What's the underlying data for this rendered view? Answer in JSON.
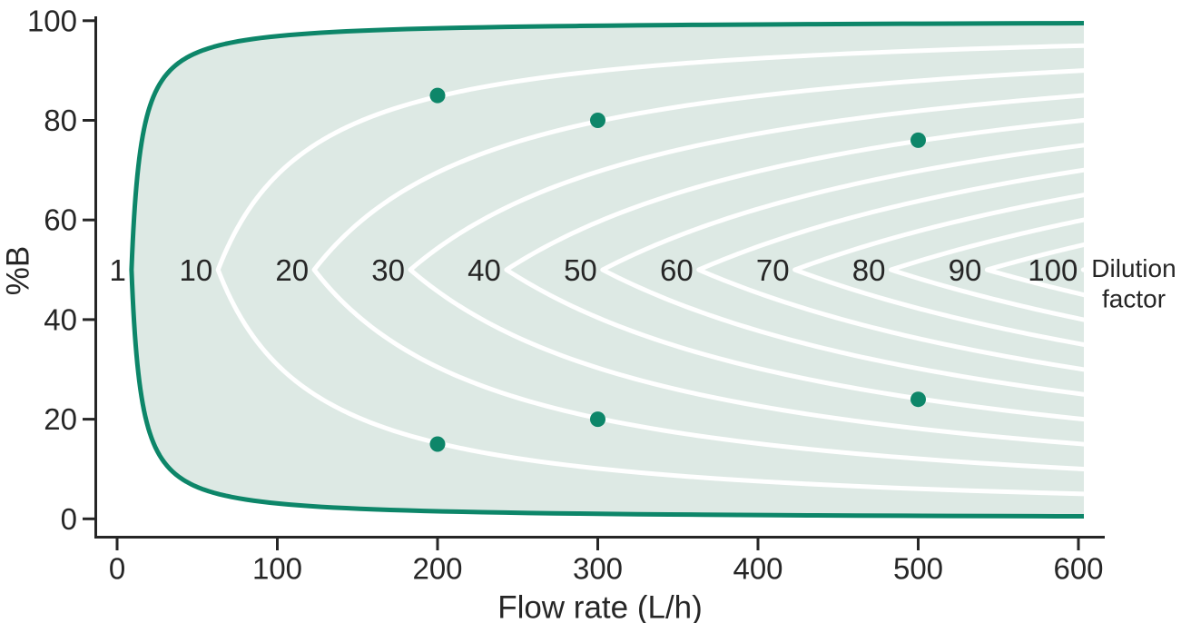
{
  "chart_data": {
    "type": "contour",
    "title": "",
    "xlabel": "Flow rate (L/h)",
    "ylabel": "%B",
    "x_ticks": [
      0,
      100,
      200,
      300,
      400,
      500,
      600
    ],
    "y_ticks": [
      0,
      20,
      40,
      60,
      80,
      100
    ],
    "xlim": [
      0,
      600
    ],
    "ylim": [
      0,
      100
    ],
    "grid": false,
    "contour_levels": [
      1,
      10,
      20,
      30,
      40,
      50,
      60,
      70,
      80,
      90,
      100
    ],
    "contour_legend_lines": [
      "Dilution",
      "factor"
    ],
    "shaded_region": "operating window between the dilution-factor-1 boundary curve and flow = 600 L/h, symmetric about %B = 50",
    "boundary_level": 1,
    "operating_points": [
      {
        "flow": 200,
        "percent_b": 85,
        "dilution_factor": 10
      },
      {
        "flow": 300,
        "percent_b": 80,
        "dilution_factor": 20
      },
      {
        "flow": 500,
        "percent_b": 76,
        "dilution_factor": 40
      },
      {
        "flow": 200,
        "percent_b": 15,
        "dilution_factor": 10
      },
      {
        "flow": 300,
        "percent_b": 20,
        "dilution_factor": 20
      },
      {
        "flow": 500,
        "percent_b": 24,
        "dilution_factor": 40
      }
    ],
    "colors": {
      "boundary_curve": "#0d8669",
      "region_fill": "#dde9e4",
      "contour_lines": "#ffffff",
      "points": "#0d8669",
      "text": "#262626",
      "axis": "#262626"
    }
  }
}
